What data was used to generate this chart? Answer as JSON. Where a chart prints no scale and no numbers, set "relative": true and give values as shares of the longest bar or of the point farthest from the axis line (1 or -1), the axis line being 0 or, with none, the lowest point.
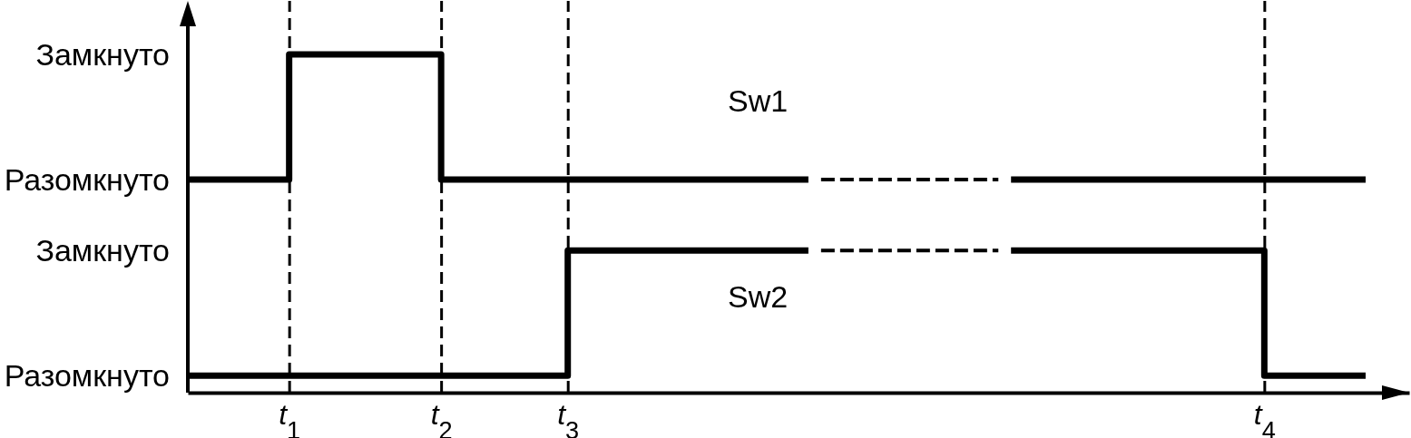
{
  "chart_data": {
    "type": "step",
    "relative": true,
    "grid": "x",
    "line_style": "solid",
    "categories": [
      null,
      null,
      null,
      null,
      null,
      null,
      null,
      null,
      "t$_{1}$",
      null,
      null,
      null,
      null,
      null,
      null,
      null,
      null,
      null,
      null,
      null,
      "t$_{2}$",
      null,
      null,
      null,
      null,
      null,
      null,
      null,
      null,
      null,
      "t$_{3}$",
      null,
      null,
      null,
      null,
      null,
      null,
      null,
      null,
      null,
      null,
      null,
      null,
      null,
      null,
      null,
      null,
      null,
      null,
      null,
      null,
      null,
      null,
      null,
      null,
      null,
      null,
      null,
      null,
      null,
      null,
      null,
      null,
      null,
      null,
      null,
      null,
      null,
      null,
      null,
      null,
      null,
      null,
      null,
      null,
      null,
      null,
      null,
      null,
      null,
      null,
      null,
      null,
      null,
      null,
      "t$_{4}$",
      null,
      null,
      null,
      null,
      null,
      null,
      null,
      null
    ],
    "annotations": [
      "Замкнуто",
      "Разомкнуто",
      "Замкнуто",
      "Разомкнуто"
    ],
    "series": [
      {
        "name": "Sw1",
        "color": "#000000",
        "values": [
          0.63,
          0.63,
          0.63,
          0.63,
          0.63,
          0.63,
          0.63,
          0.63,
          1,
          1,
          1,
          1,
          1,
          1,
          1,
          1,
          1,
          1,
          1,
          1,
          0.63,
          0.63,
          0.63,
          0.63,
          0.63,
          0.63,
          0.63,
          0.63,
          0.63,
          0.63,
          0.63,
          0.63,
          0.63,
          0.63,
          0.63,
          0.63,
          0.63,
          0.63,
          0.63,
          0.63,
          0.63,
          0.63,
          0.63,
          0.63,
          0.63,
          0.63,
          0.63,
          0.63,
          0.63,
          0.63,
          null,
          null,
          null,
          null,
          null,
          null,
          null,
          null,
          null,
          null,
          null,
          null,
          null,
          null,
          null,
          null,
          null,
          null,
          null,
          null,
          null,
          null,
          null,
          null,
          null,
          null,
          null,
          null,
          null,
          null,
          null,
          null,
          null,
          null,
          null,
          null,
          null,
          null,
          null,
          null,
          null,
          null,
          null,
          null
        ]
      },
      {
        "type": "line",
        "line_style": "dashed",
        "color": "#000000",
        "values": [
          null,
          null,
          null,
          null,
          null,
          null,
          null,
          null,
          null,
          null,
          null,
          null,
          null,
          null,
          null,
          null,
          null,
          null,
          null,
          null,
          null,
          null,
          null,
          null,
          null,
          null,
          null,
          null,
          null,
          null,
          null,
          null,
          null,
          null,
          null,
          null,
          null,
          null,
          null,
          null,
          null,
          null,
          null,
          null,
          null,
          null,
          null,
          null,
          null,
          null,
          0.63,
          0.63,
          0.63,
          0.63,
          0.63,
          0.63,
          0.63,
          0.63,
          0.63,
          0.63,
          0.63,
          0.63,
          0.63,
          0.63,
          0.63,
          null,
          null,
          null,
          null,
          null,
          null,
          null,
          null,
          null,
          null,
          null,
          null,
          null,
          null,
          null,
          null,
          null,
          null,
          null,
          null,
          null,
          null,
          null,
          null,
          null,
          null,
          null,
          null,
          null
        ]
      },
      {
        "color": "#000000",
        "values": [
          null,
          null,
          null,
          null,
          null,
          null,
          null,
          null,
          null,
          null,
          null,
          null,
          null,
          null,
          null,
          null,
          null,
          null,
          null,
          null,
          null,
          null,
          null,
          null,
          null,
          null,
          null,
          null,
          null,
          null,
          null,
          null,
          null,
          null,
          null,
          null,
          null,
          null,
          null,
          null,
          null,
          null,
          null,
          null,
          null,
          null,
          null,
          null,
          null,
          null,
          null,
          null,
          null,
          null,
          null,
          null,
          null,
          null,
          null,
          null,
          null,
          null,
          null,
          null,
          null,
          0.63,
          0.63,
          0.63,
          0.63,
          0.63,
          0.63,
          0.63,
          0.63,
          0.63,
          0.63,
          0.63,
          0.63,
          0.63,
          0.63,
          0.63,
          0.63,
          0.63,
          0.63,
          0.63,
          0.63,
          0.63,
          0.63,
          0.63,
          0.63,
          0.63,
          0.63,
          0.63,
          0.63,
          0.63
        ]
      },
      {
        "name": "Sw2",
        "color": "#000000",
        "values": [
          0.05,
          0.05,
          0.05,
          0.05,
          0.05,
          0.05,
          0.05,
          0.05,
          0.05,
          0.05,
          0.05,
          0.05,
          0.05,
          0.05,
          0.05,
          0.05,
          0.05,
          0.05,
          0.05,
          0.05,
          0.05,
          0.05,
          0.05,
          0.05,
          0.05,
          0.05,
          0.05,
          0.05,
          0.05,
          0.05,
          0.42,
          0.42,
          0.42,
          0.42,
          0.42,
          0.42,
          0.42,
          0.42,
          0.42,
          0.42,
          0.42,
          0.42,
          0.42,
          0.42,
          0.42,
          0.42,
          0.42,
          0.42,
          0.42,
          0.42,
          null,
          null,
          null,
          null,
          null,
          null,
          null,
          null,
          null,
          null,
          null,
          null,
          null,
          null,
          null,
          null,
          null,
          null,
          null,
          null,
          null,
          null,
          null,
          null,
          null,
          null,
          null,
          null,
          null,
          null,
          null,
          null,
          null,
          null,
          null,
          null,
          null,
          null,
          null,
          null,
          null,
          null,
          null,
          null
        ]
      },
      {
        "type": "line",
        "line_style": "dashed",
        "color": "#000000",
        "values": [
          null,
          null,
          null,
          null,
          null,
          null,
          null,
          null,
          null,
          null,
          null,
          null,
          null,
          null,
          null,
          null,
          null,
          null,
          null,
          null,
          null,
          null,
          null,
          null,
          null,
          null,
          null,
          null,
          null,
          null,
          null,
          null,
          null,
          null,
          null,
          null,
          null,
          null,
          null,
          null,
          null,
          null,
          null,
          null,
          null,
          null,
          null,
          null,
          null,
          null,
          0.42,
          0.42,
          0.42,
          0.42,
          0.42,
          0.42,
          0.42,
          0.42,
          0.42,
          0.42,
          0.42,
          0.42,
          0.42,
          0.42,
          0.42,
          null,
          null,
          null,
          null,
          null,
          null,
          null,
          null,
          null,
          null,
          null,
          null,
          null,
          null,
          null,
          null,
          null,
          null,
          null,
          null,
          null,
          null,
          null,
          null,
          null,
          null,
          null,
          null,
          null
        ]
      },
      {
        "color": "#000000",
        "values": [
          null,
          null,
          null,
          null,
          null,
          null,
          null,
          null,
          null,
          null,
          null,
          null,
          null,
          null,
          null,
          null,
          null,
          null,
          null,
          null,
          null,
          null,
          null,
          null,
          null,
          null,
          null,
          null,
          null,
          null,
          null,
          null,
          null,
          null,
          null,
          null,
          null,
          null,
          null,
          null,
          null,
          null,
          null,
          null,
          null,
          null,
          null,
          null,
          null,
          null,
          null,
          null,
          null,
          null,
          null,
          null,
          null,
          null,
          null,
          null,
          null,
          null,
          null,
          null,
          null,
          0.42,
          0.42,
          0.42,
          0.42,
          0.42,
          0.42,
          0.42,
          0.42,
          0.42,
          0.42,
          0.42,
          0.42,
          0.42,
          0.42,
          0.42,
          0.42,
          0.42,
          0.42,
          0.42,
          0.42,
          0.05,
          0.05,
          0.05,
          0.05,
          0.05,
          0.05,
          0.05,
          0.05,
          0.05
        ]
      }
    ]
  }
}
